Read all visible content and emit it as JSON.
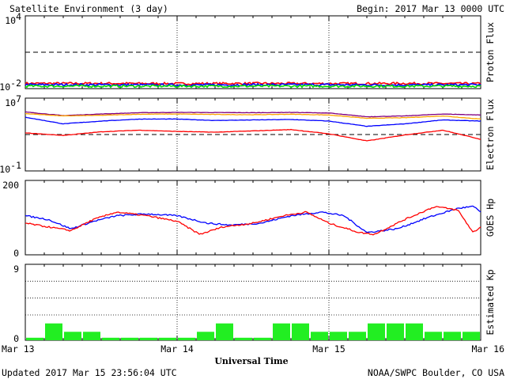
{
  "header": {
    "title": "Satellite Environment (3 day)",
    "begin": "Begin:  2017 Mar 13 0000 UTC"
  },
  "footer": {
    "updated": "Updated 2017 Mar 15 23:56:04 UTC",
    "credit": "NOAA/SWPC Boulder, CO USA"
  },
  "x_axis": {
    "label": "Universal Time",
    "ticks": [
      "Mar 13",
      "Mar 14",
      "Mar 15",
      "Mar 16"
    ]
  },
  "chart_data": [
    {
      "id": "proton",
      "type": "line",
      "ylabel": "Proton Flux",
      "scale": "log",
      "ylim": [
        0.01,
        10000
      ],
      "ytick_labels": [
        {
          "base": "10",
          "exp": "4"
        },
        {
          "base": "10",
          "exp": "-2"
        }
      ],
      "threshold": 10,
      "threshold_style": "dashed",
      "day_markers": [
        1,
        2
      ],
      "x_unit_days": true,
      "series": [
        {
          "color": "#ff0000",
          "x": [
            0,
            0.5,
            1,
            1.5,
            2,
            2.5,
            3
          ],
          "y": [
            0.027,
            0.027,
            0.026,
            0.027,
            0.026,
            0.027,
            0.026
          ]
        },
        {
          "color": "#0000ff",
          "x": [
            0,
            0.5,
            1,
            1.5,
            2,
            2.5,
            3
          ],
          "y": [
            0.021,
            0.021,
            0.02,
            0.021,
            0.021,
            0.02,
            0.021
          ]
        },
        {
          "color": "#00dd00",
          "x": [
            0,
            0.5,
            1,
            1.5,
            2,
            2.5,
            3
          ],
          "y": [
            0.016,
            0.016,
            0.016,
            0.016,
            0.016,
            0.016,
            0.016
          ]
        }
      ]
    },
    {
      "id": "electron",
      "type": "line",
      "ylabel": "Electron Flux",
      "scale": "log",
      "ylim": [
        0.1,
        10000000
      ],
      "ytick_labels": [
        {
          "base": "10",
          "exp": "7"
        },
        {
          "base": "10",
          "exp": "-1"
        }
      ],
      "threshold": 1000,
      "threshold_style": "dashed",
      "day_markers": [
        1,
        2
      ],
      "series": [
        {
          "color": "#800080",
          "x": [
            0,
            0.25,
            0.5,
            0.75,
            1,
            1.25,
            1.5,
            1.75,
            2,
            2.25,
            2.5,
            2.75,
            3
          ],
          "y": [
            300000,
            120000,
            180000,
            250000,
            270000,
            260000,
            250000,
            270000,
            230000,
            90000,
            110000,
            180000,
            140000
          ]
        },
        {
          "color": "#ffa500",
          "x": [
            0,
            0.25,
            0.5,
            0.75,
            1,
            1.25,
            1.5,
            1.75,
            2,
            2.25,
            2.5,
            2.75,
            3
          ],
          "y": [
            200000,
            110000,
            130000,
            170000,
            180000,
            160000,
            150000,
            170000,
            140000,
            60000,
            70000,
            110000,
            50000
          ]
        },
        {
          "color": "#0000ff",
          "x": [
            0,
            0.25,
            0.5,
            0.75,
            1,
            1.25,
            1.5,
            1.75,
            2,
            2.25,
            2.5,
            2.75,
            3
          ],
          "y": [
            80000,
            15000,
            30000,
            50000,
            50000,
            35000,
            40000,
            45000,
            30000,
            8000,
            15000,
            40000,
            30000
          ]
        },
        {
          "color": "#ff0000",
          "x": [
            0,
            0.25,
            0.5,
            0.75,
            1,
            1.25,
            1.5,
            1.75,
            2,
            2.25,
            2.5,
            2.75,
            3
          ],
          "y": [
            1500,
            800,
            2000,
            3000,
            2200,
            1800,
            2500,
            3500,
            1200,
            200,
            900,
            3000,
            300
          ]
        }
      ]
    },
    {
      "id": "hp",
      "type": "line",
      "ylabel": "GOES Hp",
      "scale": "linear",
      "ylim": [
        0,
        200
      ],
      "ytick_labels": [
        {
          "base": "200"
        },
        {
          "base": "0"
        }
      ],
      "day_markers": [
        1,
        2
      ],
      "series": [
        {
          "color": "#0000ff",
          "x": [
            0,
            0.15,
            0.3,
            0.45,
            0.6,
            0.8,
            1,
            1.2,
            1.35,
            1.55,
            1.75,
            1.95,
            2.1,
            2.25,
            2.45,
            2.65,
            2.85,
            2.95,
            3
          ],
          "y": [
            105,
            95,
            70,
            90,
            105,
            110,
            105,
            85,
            80,
            85,
            105,
            115,
            105,
            60,
            70,
            100,
            125,
            130,
            115
          ]
        },
        {
          "color": "#ff0000",
          "x": [
            0,
            0.15,
            0.3,
            0.45,
            0.6,
            0.8,
            1,
            1.15,
            1.3,
            1.5,
            1.7,
            1.85,
            2,
            2.2,
            2.3,
            2.5,
            2.7,
            2.85,
            2.95,
            3
          ],
          "y": [
            85,
            75,
            65,
            95,
            115,
            105,
            90,
            55,
            75,
            85,
            105,
            115,
            85,
            60,
            55,
            95,
            130,
            120,
            60,
            75
          ]
        }
      ]
    },
    {
      "id": "kp",
      "type": "bar",
      "ylabel": "Estimated Kp",
      "scale": "linear",
      "ylim": [
        0,
        9
      ],
      "ytick_labels": [
        {
          "base": "9"
        },
        {
          "base": "0"
        }
      ],
      "grid_levels": [
        3,
        5,
        7,
        9
      ],
      "day_markers": [
        1,
        2
      ],
      "bar_color": "#22ee22",
      "interval_hours": 3,
      "values": [
        0.3,
        2,
        1,
        1,
        0.3,
        0.3,
        0.3,
        0.3,
        0.3,
        1,
        2,
        0.3,
        0.3,
        2,
        2,
        1,
        1,
        1,
        2,
        2,
        2,
        1,
        1,
        1
      ]
    }
  ]
}
